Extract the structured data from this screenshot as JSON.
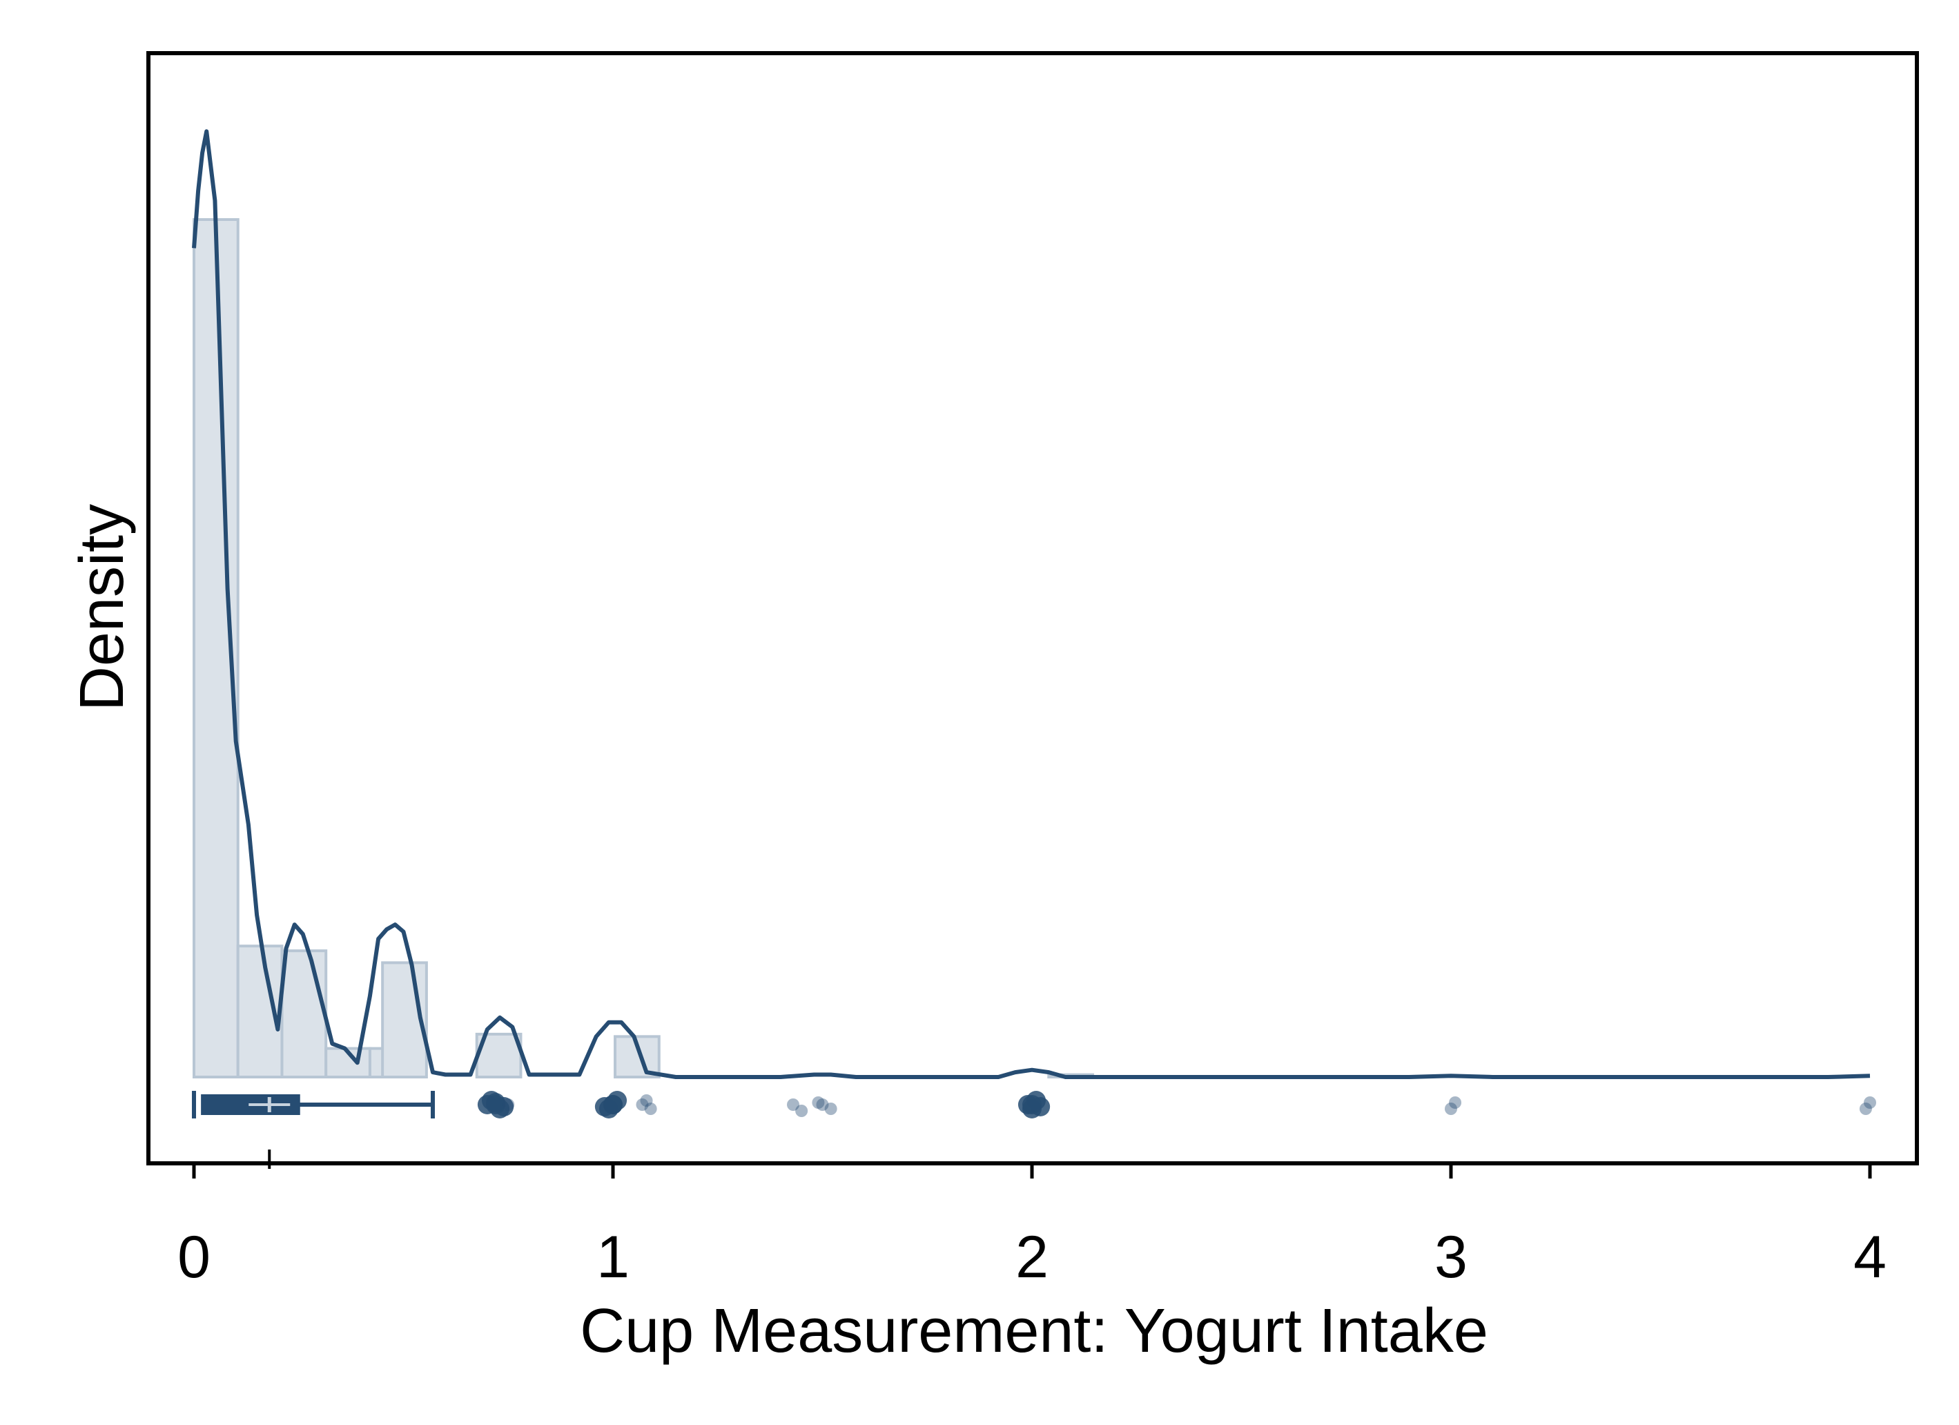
{
  "chart_data": {
    "type": "histogram",
    "xlabel": "Cup Measurement: Yogurt Intake",
    "ylabel": "Density",
    "xlim": [
      -0.1,
      4.1
    ],
    "ylim": [
      0,
      3.8
    ],
    "x_ticks": [
      0,
      1,
      2,
      3,
      4
    ],
    "y_ticks_shown": false,
    "grid": false,
    "colors": {
      "bar_fill": "#dbe2e9",
      "bar_stroke": "#b8c6d4",
      "line": "#264c72",
      "points": "#264c72",
      "frame": "#000000"
    },
    "histogram": {
      "bin_width": 0.105,
      "bins": [
        {
          "x0": 0.0,
          "density": 3.6
        },
        {
          "x0": 0.105,
          "density": 0.55
        },
        {
          "x0": 0.21,
          "density": 0.53
        },
        {
          "x0": 0.315,
          "density": 0.12
        },
        {
          "x0": 0.42,
          "density": 0.12
        },
        {
          "x0": 0.45,
          "density": 0.48
        },
        {
          "x0": 0.675,
          "density": 0.18
        },
        {
          "x0": 1.005,
          "density": 0.17
        },
        {
          "x0": 2.04,
          "density": 0.01
        }
      ]
    },
    "density_curve": {
      "name": "kernel density",
      "x": [
        0.0,
        0.01,
        0.02,
        0.03,
        0.05,
        0.08,
        0.1,
        0.13,
        0.15,
        0.17,
        0.2,
        0.22,
        0.24,
        0.26,
        0.28,
        0.3,
        0.33,
        0.36,
        0.39,
        0.42,
        0.44,
        0.46,
        0.48,
        0.5,
        0.52,
        0.54,
        0.57,
        0.6,
        0.66,
        0.7,
        0.73,
        0.76,
        0.8,
        0.92,
        0.96,
        0.99,
        1.02,
        1.05,
        1.08,
        1.15,
        1.4,
        1.48,
        1.52,
        1.58,
        1.92,
        1.96,
        2.0,
        2.04,
        2.08,
        2.9,
        3.0,
        3.1,
        3.9,
        4.0
      ],
      "y": [
        3.48,
        3.72,
        3.88,
        3.97,
        3.68,
        2.05,
        1.41,
        1.06,
        0.68,
        0.46,
        0.2,
        0.54,
        0.64,
        0.6,
        0.49,
        0.35,
        0.14,
        0.12,
        0.06,
        0.34,
        0.58,
        0.62,
        0.64,
        0.61,
        0.47,
        0.25,
        0.02,
        0.01,
        0.01,
        0.2,
        0.25,
        0.21,
        0.01,
        0.01,
        0.17,
        0.23,
        0.23,
        0.17,
        0.02,
        0.0,
        0.0,
        0.01,
        0.01,
        0.0,
        0.0,
        0.02,
        0.03,
        0.02,
        0.0,
        0.0,
        0.005,
        0.0,
        0.0,
        0.005
      ]
    },
    "boxplot": {
      "min": 0.0,
      "q1": 0.02,
      "median": 0.18,
      "q3": 0.25,
      "upper_whisker": 0.57,
      "mean": 0.18
    },
    "outliers": {
      "x": [
        0.72,
        0.73,
        0.71,
        0.74,
        0.72,
        0.75,
        0.7,
        1.0,
        0.99,
        1.01,
        0.98,
        1.0,
        1.07,
        1.09,
        1.08,
        1.43,
        1.45,
        1.49,
        1.5,
        1.52,
        1.99,
        2.0,
        2.01,
        2.0,
        2.02,
        3.0,
        3.01,
        3.99,
        4.0
      ],
      "offset": [
        0,
        1,
        -1,
        0.5,
        -0.5,
        0,
        0,
        0,
        1,
        -1,
        0.5,
        0,
        0,
        1,
        -1,
        0,
        1.5,
        -0.5,
        0,
        1,
        0,
        1,
        -1,
        0,
        0.5,
        1,
        -0.5,
        1,
        -0.5
      ]
    }
  }
}
